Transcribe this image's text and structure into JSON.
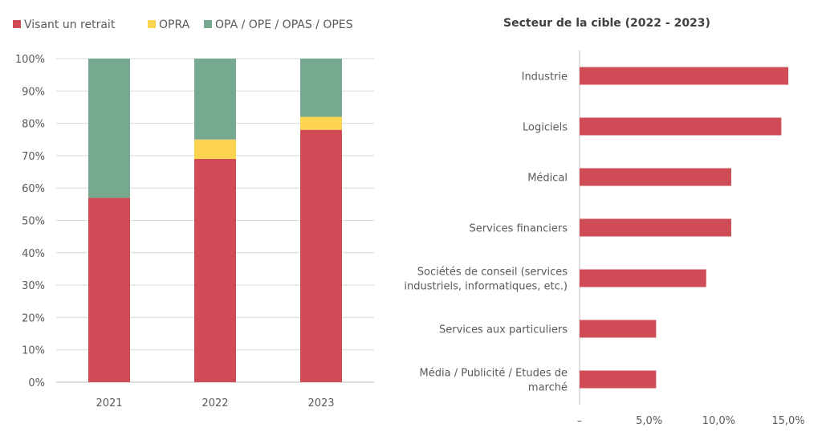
{
  "chart_data": [
    {
      "type": "bar",
      "stacked": true,
      "orientation": "vertical",
      "categories": [
        "2021",
        "2022",
        "2023"
      ],
      "series": [
        {
          "name": "Visant un retrait",
          "color": "#cf4b55",
          "values": [
            57,
            69,
            78
          ]
        },
        {
          "name": "OPRA",
          "color": "#fdd44f",
          "values": [
            0,
            6,
            4
          ]
        },
        {
          "name": "OPA / OPE / OPAS / OPES",
          "color": "#77a890",
          "values": [
            43,
            25,
            18
          ]
        }
      ],
      "ylim": [
        0,
        100
      ],
      "yticks": [
        "0%",
        "10%",
        "20%",
        "30%",
        "40%",
        "50%",
        "60%",
        "70%",
        "80%",
        "90%",
        "100%"
      ],
      "grid": true,
      "legend": "top"
    },
    {
      "type": "bar",
      "orientation": "horizontal",
      "title": "Secteur de la cible (2022 - 2023)",
      "categories": [
        "Industrie",
        "Logiciels",
        "Médical",
        "Services financiers",
        "Sociétés de conseil (services industriels, informatiques, etc.)",
        "Services aux particuliers",
        "Média / Publicité / Etudes de marché"
      ],
      "category_lines": [
        [
          "Industrie"
        ],
        [
          "Logiciels"
        ],
        [
          "Médical"
        ],
        [
          "Services financiers"
        ],
        [
          "Sociétés de conseil (services",
          "industriels, informatiques, etc.)"
        ],
        [
          "Services aux particuliers"
        ],
        [
          "Média / Publicité / Etudes de",
          "marché"
        ]
      ],
      "values": [
        15.0,
        14.5,
        10.9,
        10.9,
        9.1,
        5.5,
        5.5
      ],
      "color": "#cf4b55",
      "xlim": [
        0,
        15
      ],
      "xticks": [
        "–",
        "5,0%",
        "10,0%",
        "15,0%"
      ],
      "xtick_values": [
        0,
        5,
        10,
        15
      ],
      "grid": false
    }
  ]
}
